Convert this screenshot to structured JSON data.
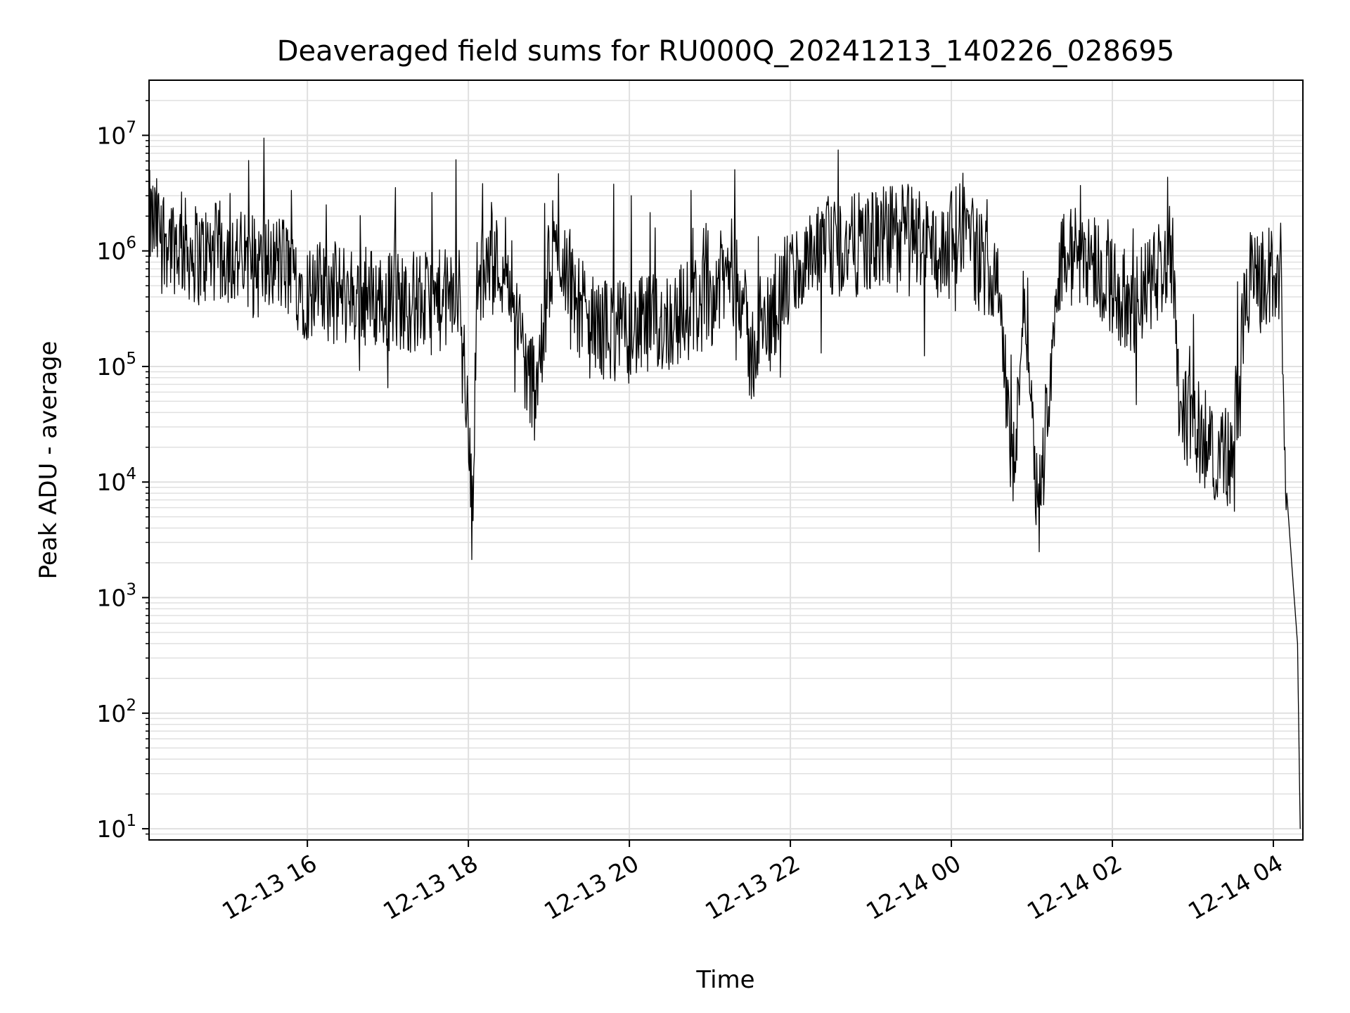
{
  "chart_data": {
    "type": "line",
    "title": "Deaveraged field sums for RU000Q_20241213_140226_028695",
    "xlabel": "Time",
    "ylabel": "Peak ADU - average",
    "y_scale": "log",
    "ylim": [
      8,
      30000000
    ],
    "xlim": [
      "12-13 14:02",
      "12-14 04:22"
    ],
    "grid": {
      "major": true,
      "minor_y": true,
      "color": "#e0e0e0"
    },
    "x_ticks": [
      {
        "label": "12-13 16",
        "hours": 16
      },
      {
        "label": "12-13 18",
        "hours": 18
      },
      {
        "label": "12-13 20",
        "hours": 20
      },
      {
        "label": "12-13 22",
        "hours": 22
      },
      {
        "label": "12-14 00",
        "hours": 24
      },
      {
        "label": "12-14 02",
        "hours": 26
      },
      {
        "label": "12-14 04",
        "hours": 28
      }
    ],
    "y_ticks": [
      {
        "base": "10",
        "exp": "1",
        "value": 10
      },
      {
        "base": "10",
        "exp": "2",
        "value": 100
      },
      {
        "base": "10",
        "exp": "3",
        "value": 1000
      },
      {
        "base": "10",
        "exp": "4",
        "value": 10000
      },
      {
        "base": "10",
        "exp": "5",
        "value": 100000
      },
      {
        "base": "10",
        "exp": "6",
        "value": 1000000
      },
      {
        "base": "10",
        "exp": "7",
        "value": 10000000
      }
    ],
    "series": [
      {
        "color": "#000000",
        "x": [
          "12-13 14:02",
          "12-13 14:20",
          "12-13 14:40",
          "12-13 15:00",
          "12-13 15:20",
          "12-13 15:40",
          "12-13 16:00",
          "12-13 16:30",
          "12-13 17:00",
          "12-13 17:30",
          "12-13 17:55",
          "12-13 18:03",
          "12-13 18:06",
          "12-13 18:12",
          "12-13 18:30",
          "12-13 18:45",
          "12-13 18:55",
          "12-13 19:00",
          "12-13 19:10",
          "12-13 19:20",
          "12-13 19:30",
          "12-13 20:00",
          "12-13 20:30",
          "12-13 21:00",
          "12-13 21:20",
          "12-13 21:30",
          "12-13 22:00",
          "12-13 22:30",
          "12-13 23:00",
          "12-13 23:30",
          "12-13 23:55",
          "12-14 00:10",
          "12-14 00:20",
          "12-14 00:35",
          "12-14 00:45",
          "12-14 00:55",
          "12-14 01:05",
          "12-14 01:20",
          "12-14 01:40",
          "12-14 02:00",
          "12-14 02:15",
          "12-14 02:35",
          "12-14 02:45",
          "12-14 02:50",
          "12-14 03:00",
          "12-14 03:15",
          "12-14 03:30",
          "12-14 03:40",
          "12-14 04:00",
          "12-14 04:05",
          "12-14 04:10",
          "12-14 04:15",
          "12-14 04:18",
          "12-14 04:20"
        ],
        "y": [
          1800000,
          1200000,
          900000,
          1000000,
          700000,
          800000,
          450000,
          420000,
          380000,
          350000,
          400000,
          4500,
          450000,
          700000,
          800000,
          70000,
          130000,
          700000,
          1000000,
          400000,
          220000,
          200000,
          250000,
          400000,
          800000,
          120000,
          600000,
          1000000,
          1200000,
          1500000,
          900000,
          2000000,
          800000,
          700000,
          10000,
          500000,
          5000,
          800000,
          1000000,
          500000,
          300000,
          700000,
          1000000,
          50000,
          30000,
          20000,
          15000,
          500000,
          600000,
          1000000,
          8000,
          1200,
          400,
          10
        ]
      }
    ]
  }
}
